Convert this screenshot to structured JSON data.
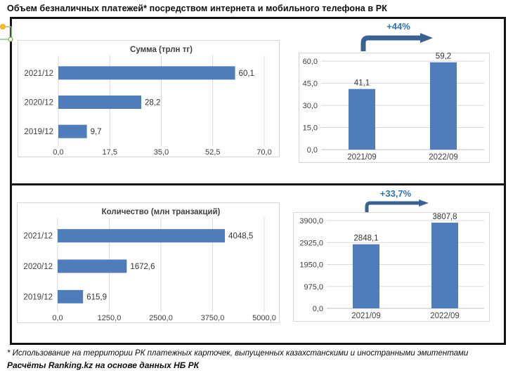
{
  "title": "Объем безналичных платежей* посредством интернета и мобильного телефона в РК",
  "footnote": "* Использование на территории РК платежных карточек, выпущенных казахстанскими и иностранными эмитентами",
  "source": "Расчёты Ranking.kz на основе данных НБ РК",
  "colors": {
    "bar": "#4F7CBA",
    "grid": "#D9D9D9",
    "zero_line": "#BFBFBF",
    "chart_border": "#D6D6D6",
    "axis_text": "#404040",
    "value_text": "#333333",
    "chart_title": "#404040",
    "annotation_text": "#2E74B6",
    "arrow": "#3A6191",
    "frame": "#141414"
  },
  "chart_data": [
    {
      "type": "barh",
      "title": "Сумма (трлн тг)",
      "categories": [
        "2021/12",
        "2020/12",
        "2019/12"
      ],
      "values": [
        60.1,
        28.2,
        9.7
      ],
      "value_labels": [
        "60,1",
        "28,2",
        "9,7"
      ],
      "xlim": [
        0,
        70
      ],
      "xticks": [
        0,
        17.5,
        35,
        52.5,
        70
      ],
      "xtick_labels": [
        "0,0",
        "17,5",
        "35,0",
        "52,5",
        "70,0"
      ],
      "grid": true,
      "legend": "none"
    },
    {
      "type": "bar",
      "title": "",
      "annotation": "+44%",
      "categories": [
        "2021/09",
        "2022/09"
      ],
      "values": [
        41.1,
        59.2
      ],
      "value_labels": [
        "41,1",
        "59,2"
      ],
      "ylim": [
        0,
        60
      ],
      "yticks": [
        0,
        15,
        30,
        45,
        60
      ],
      "ytick_labels": [
        "0,0",
        "15,0",
        "30,0",
        "45,0",
        "60,0"
      ],
      "grid": true,
      "legend": "none"
    },
    {
      "type": "barh",
      "title": "Количество (млн транзакций)",
      "categories": [
        "2021/12",
        "2020/12",
        "2019/12"
      ],
      "values": [
        4048.5,
        1672.6,
        615.9
      ],
      "value_labels": [
        "4048,5",
        "1672,6",
        "615,9"
      ],
      "xlim": [
        0,
        5000
      ],
      "xticks": [
        0,
        1250,
        2500,
        3750,
        5000
      ],
      "xtick_labels": [
        "0,0",
        "1250,0",
        "2500,0",
        "3750,0",
        "5000,0"
      ],
      "grid": true,
      "legend": "none"
    },
    {
      "type": "bar",
      "title": "",
      "annotation": "+33,7%",
      "categories": [
        "2021/09",
        "2022/09"
      ],
      "values": [
        2848.1,
        3807.8
      ],
      "value_labels": [
        "2848,1",
        "3807,8"
      ],
      "ylim": [
        0,
        3900
      ],
      "yticks": [
        0,
        975,
        1950,
        2925,
        3900
      ],
      "ytick_labels": [
        "0,0",
        "975,0",
        "1950,0",
        "2925,0",
        "3900,0"
      ],
      "grid": true,
      "legend": "none"
    }
  ]
}
